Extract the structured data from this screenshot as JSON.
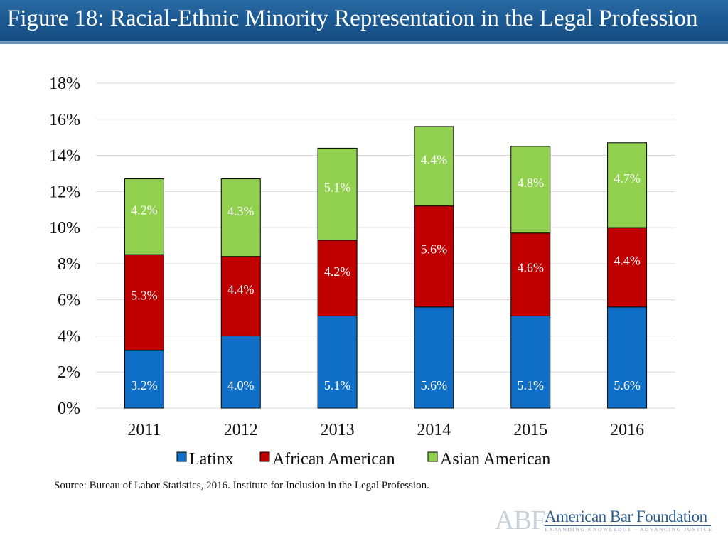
{
  "title": "Figure 18: Racial-Ethnic Minority Representation in the Legal Profession",
  "source": "Source: Bureau of Labor Statistics, 2016. Institute for Inclusion in the Legal Profession.",
  "logo": {
    "abbr": "ABF",
    "name": "American Bar Foundation",
    "tagline": "EXPANDING KNOWLEDGE · ADVANCING JUSTICE"
  },
  "colors": {
    "title_bar": "#1d5a93",
    "latinx": "#0f6fc6",
    "african_american": "#c00000",
    "asian_american": "#92d050",
    "grid": "#d9d9d9"
  },
  "chart_data": {
    "type": "bar",
    "stacked": true,
    "categories": [
      "2011",
      "2012",
      "2013",
      "2014",
      "2015",
      "2016"
    ],
    "series": [
      {
        "name": "Latinx",
        "values": [
          3.2,
          4.0,
          5.1,
          5.6,
          5.1,
          5.6
        ],
        "labels": [
          "3.2%",
          "4.0%",
          "5.1%",
          "5.6%",
          "5.1%",
          "5.6%"
        ]
      },
      {
        "name": "African American",
        "values": [
          5.3,
          4.4,
          4.2,
          5.6,
          4.6,
          4.4
        ],
        "labels": [
          "5.3%",
          "4.4%",
          "4.2%",
          "5.6%",
          "4.6%",
          "4.4%"
        ]
      },
      {
        "name": "Asian American",
        "values": [
          4.2,
          4.3,
          5.1,
          4.4,
          4.8,
          4.7
        ],
        "labels": [
          "4.2%",
          "4.3%",
          "5.1%",
          "4.4%",
          "4.8%",
          "4.7%"
        ]
      }
    ],
    "ylim": [
      0,
      18
    ],
    "yticks": [
      0,
      2,
      4,
      6,
      8,
      10,
      12,
      14,
      16,
      18
    ],
    "ytick_labels": [
      "0%",
      "2%",
      "4%",
      "6%",
      "8%",
      "10%",
      "12%",
      "14%",
      "16%",
      "18%"
    ],
    "grid": true,
    "legend": "bottom",
    "title": "",
    "xlabel": "",
    "ylabel": ""
  }
}
